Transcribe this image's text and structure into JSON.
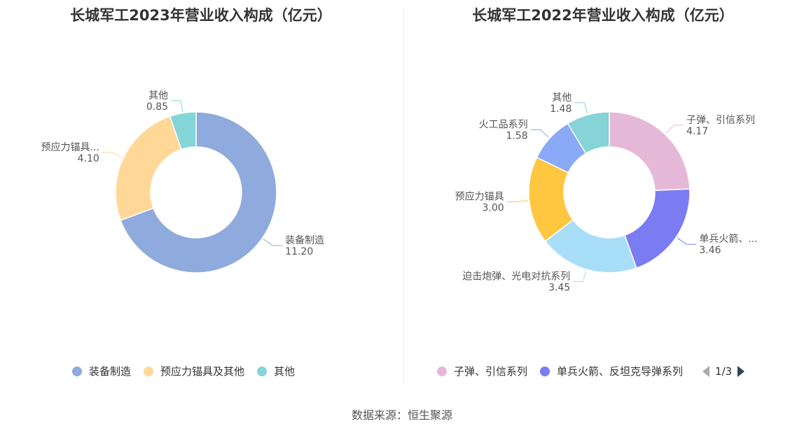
{
  "source_text": "数据来源：恒生聚源",
  "pager": {
    "text": "1/3"
  },
  "chart_data": [
    {
      "type": "pie",
      "title": "长城军工2023年营业收入构成（亿元）",
      "slices": [
        {
          "name": "装备制造",
          "value": 11.2,
          "label": "装备制造",
          "value_label": "11.20",
          "color": "#8faadc"
        },
        {
          "name": "预应力锚具及其他",
          "value": 4.1,
          "label": "预应力锚具...",
          "value_label": "4.10",
          "color": "#ffd797"
        },
        {
          "name": "其他",
          "value": 0.85,
          "label": "其他",
          "value_label": "0.85",
          "color": "#84d5d8"
        }
      ],
      "legend": [
        "装备制造",
        "预应力锚具及其他",
        "其他"
      ]
    },
    {
      "type": "pie",
      "title": "长城军工2022年营业收入构成（亿元）",
      "slices": [
        {
          "name": "子弹、引信系列",
          "value": 4.17,
          "label": "子弹、引信系列",
          "value_label": "4.17",
          "color": "#e6b8d8"
        },
        {
          "name": "单兵火箭、反坦克导弹系列",
          "value": 3.46,
          "label": "单兵火箭、...",
          "value_label": "3.46",
          "color": "#7b7cf2"
        },
        {
          "name": "迫击炮弹、光电对抗系列",
          "value": 3.45,
          "label": "迫击炮弹、光电对抗系列",
          "value_label": "3.45",
          "color": "#a8def7"
        },
        {
          "name": "预应力锚具",
          "value": 3.0,
          "label": "预应力锚具",
          "value_label": "3.00",
          "color": "#ffc640"
        },
        {
          "name": "火工品系列",
          "value": 1.58,
          "label": "火工品系列",
          "value_label": "1.58",
          "color": "#8aa9f7"
        },
        {
          "name": "其他",
          "value": 1.48,
          "label": "其他",
          "value_label": "1.48",
          "color": "#86d3d8"
        }
      ],
      "legend": [
        "子弹、引信系列",
        "单兵火箭、反坦克导弹系列"
      ]
    }
  ]
}
